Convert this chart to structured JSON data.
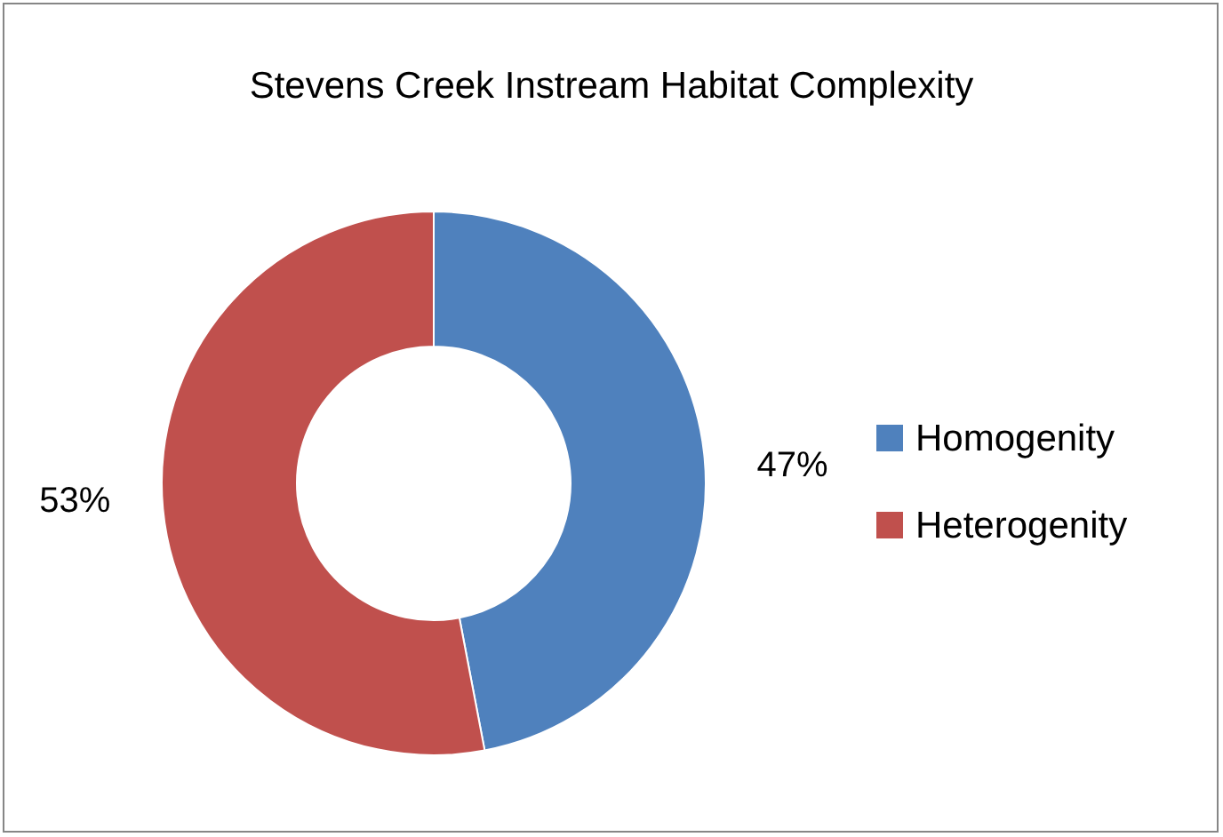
{
  "chart_data": {
    "type": "donut",
    "title": "Stevens Creek Instream  Habitat  Complexity",
    "categories": [
      "Homogenity",
      "Heterogenity"
    ],
    "values": [
      47,
      53
    ],
    "colors": [
      "#4f81bd",
      "#c0504d"
    ],
    "value_labels": [
      "47%",
      "53%"
    ],
    "legend": "right"
  }
}
